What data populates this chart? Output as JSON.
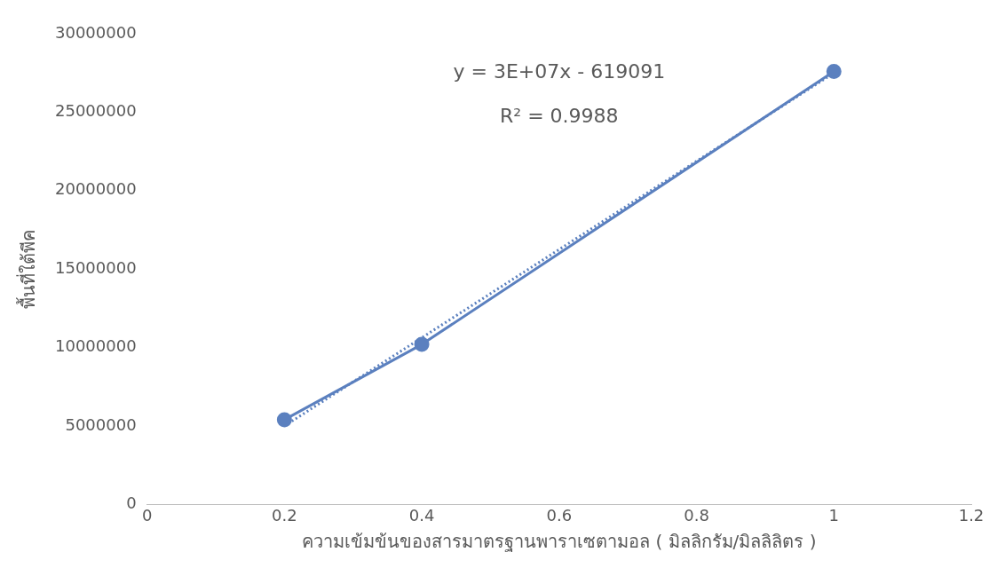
{
  "chart_data": {
    "type": "line",
    "xlabel": "ความเข้มข้นของสารมาตรฐานพาราเซตามอล ( มิลลิกรัม/มิลลิลิตร )",
    "ylabel": "พื้นที่ใต้พีค",
    "x": [
      0.2,
      0.4,
      1
    ],
    "series": [
      {
        "type": "line",
        "color": "#5b80bf",
        "values": [
          5400000,
          10200000,
          27600000
        ],
        "marker": "circle",
        "line_style": "solid"
      },
      {
        "type": "line",
        "color": "#5b80bf",
        "x": [
          0.2,
          1
        ],
        "values": [
          5000000,
          27500000
        ],
        "line_style": "dotted"
      }
    ],
    "xlim": [
      0,
      1.2
    ],
    "xticks": [
      0,
      0.2,
      0.4,
      0.6,
      0.8,
      1,
      1.2
    ],
    "ylim": [
      0,
      30000000
    ],
    "yticks": [
      0,
      5000000,
      10000000,
      15000000,
      20000000,
      25000000,
      30000000
    ],
    "grid": false,
    "legend": false,
    "annotations": [
      "y = 3E+07x - 619091",
      "R² = 0.9988"
    ]
  }
}
